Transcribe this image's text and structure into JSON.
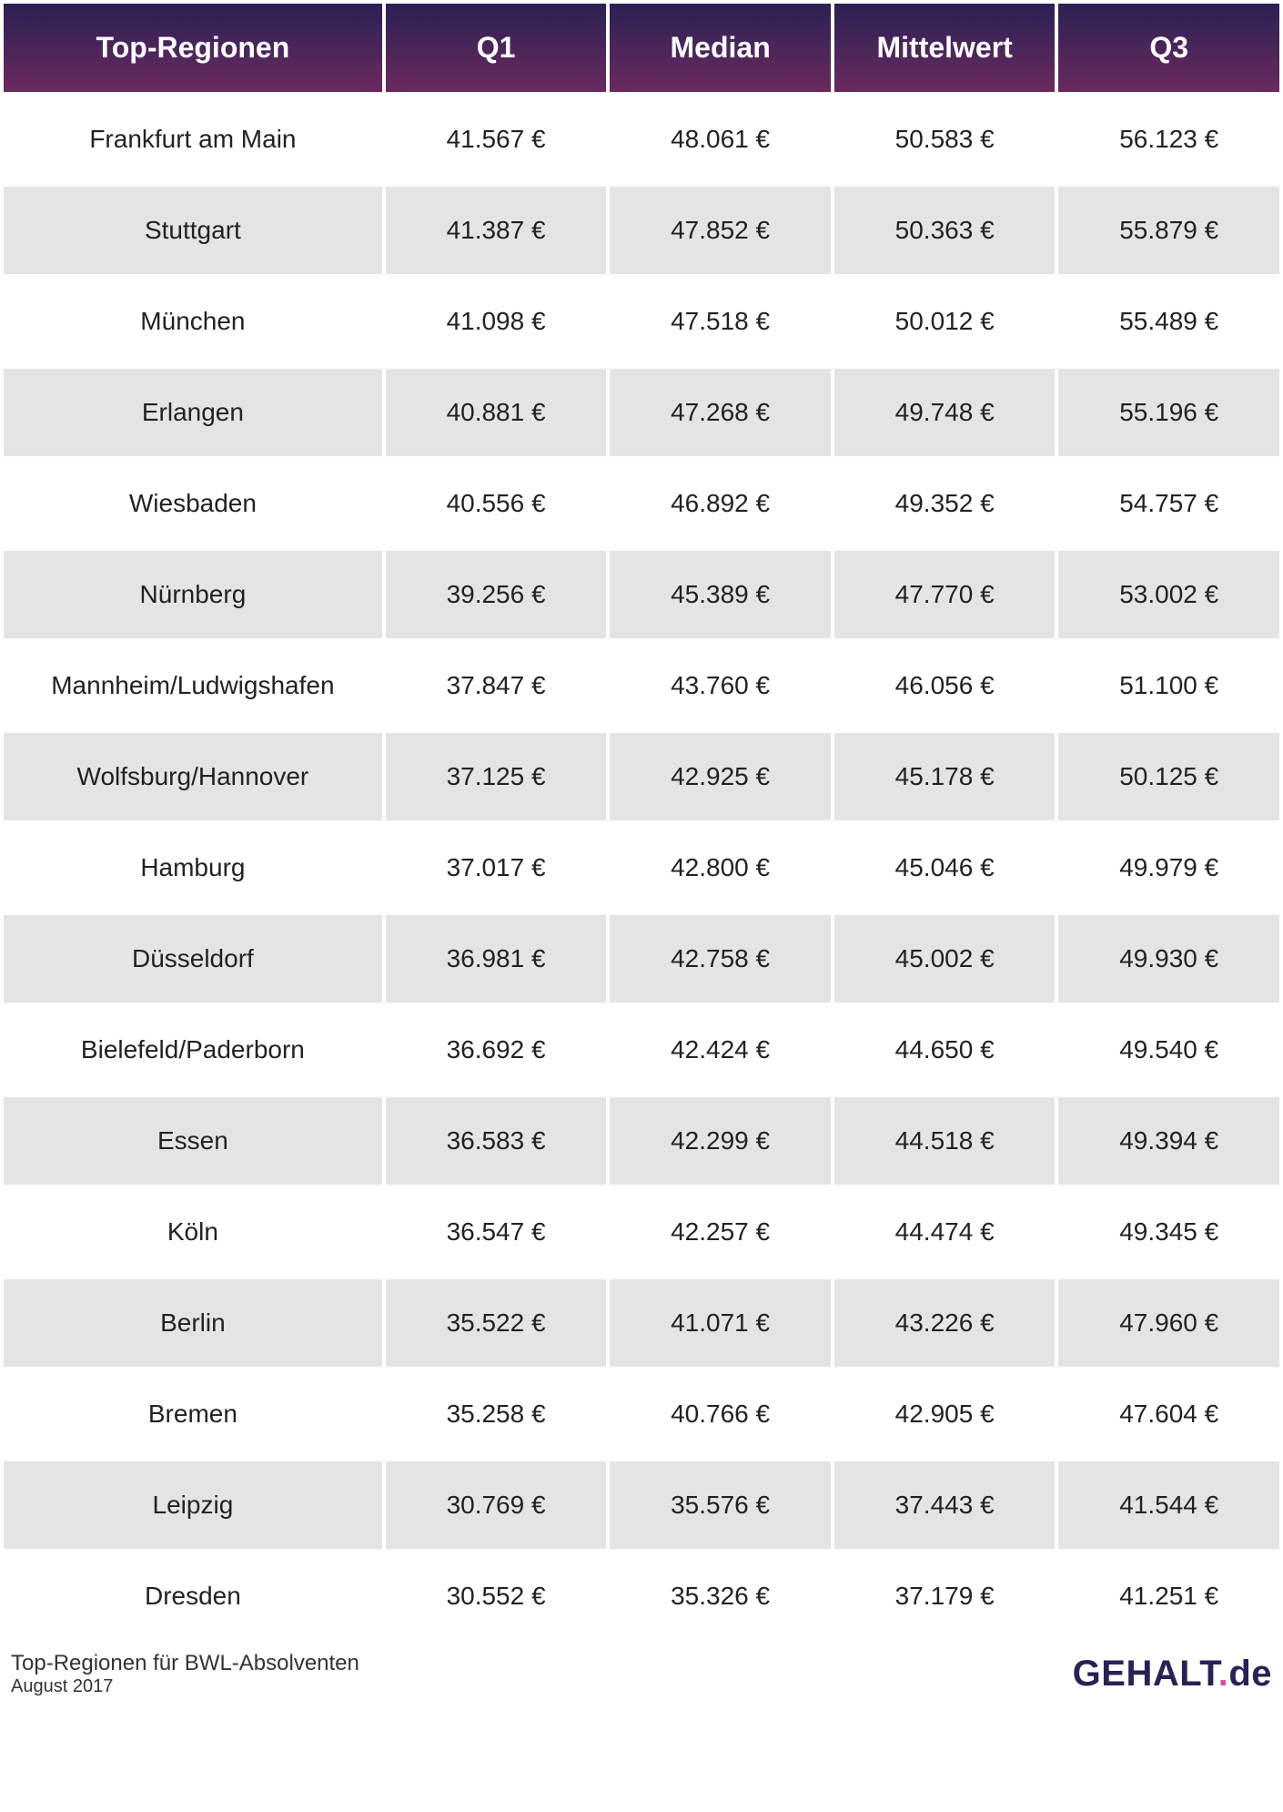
{
  "table": {
    "type": "table",
    "header_bg_gradient_start": "#2a2154",
    "header_bg_gradient_end": "#6b2a5f",
    "header_text_color": "#ffffff",
    "header_fontsize": 32,
    "header_fontweight": 600,
    "cell_fontsize": 28,
    "cell_text_color": "#222222",
    "row_odd_bg": "#ffffff",
    "row_even_bg": "#e4e4e4",
    "border_spacing": 4,
    "columns": [
      {
        "key": "region",
        "label": "Top-Regionen",
        "width": "30%"
      },
      {
        "key": "q1",
        "label": "Q1",
        "width": "17.5%"
      },
      {
        "key": "median",
        "label": "Median",
        "width": "17.5%"
      },
      {
        "key": "mittelwert",
        "label": "Mittelwert",
        "width": "17.5%"
      },
      {
        "key": "q3",
        "label": "Q3",
        "width": "17.5%"
      }
    ],
    "rows": [
      {
        "region": "Frankfurt am Main",
        "q1": "41.567 €",
        "median": "48.061 €",
        "mittelwert": "50.583 €",
        "q3": "56.123 €"
      },
      {
        "region": "Stuttgart",
        "q1": "41.387 €",
        "median": "47.852 €",
        "mittelwert": "50.363 €",
        "q3": "55.879 €"
      },
      {
        "region": "München",
        "q1": "41.098 €",
        "median": "47.518 €",
        "mittelwert": "50.012 €",
        "q3": "55.489 €"
      },
      {
        "region": "Erlangen",
        "q1": "40.881 €",
        "median": "47.268 €",
        "mittelwert": "49.748 €",
        "q3": "55.196 €"
      },
      {
        "region": "Wiesbaden",
        "q1": "40.556 €",
        "median": "46.892 €",
        "mittelwert": "49.352 €",
        "q3": "54.757 €"
      },
      {
        "region": "Nürnberg",
        "q1": "39.256 €",
        "median": "45.389 €",
        "mittelwert": "47.770 €",
        "q3": "53.002 €"
      },
      {
        "region": "Mannheim/Ludwigshafen",
        "q1": "37.847 €",
        "median": "43.760 €",
        "mittelwert": "46.056 €",
        "q3": "51.100 €"
      },
      {
        "region": "Wolfsburg/Hannover",
        "q1": "37.125 €",
        "median": "42.925 €",
        "mittelwert": "45.178 €",
        "q3": "50.125 €"
      },
      {
        "region": "Hamburg",
        "q1": "37.017 €",
        "median": "42.800 €",
        "mittelwert": "45.046 €",
        "q3": "49.979 €"
      },
      {
        "region": "Düsseldorf",
        "q1": "36.981 €",
        "median": "42.758 €",
        "mittelwert": "45.002 €",
        "q3": "49.930 €"
      },
      {
        "region": "Bielefeld/Paderborn",
        "q1": "36.692 €",
        "median": "42.424 €",
        "mittelwert": "44.650 €",
        "q3": "49.540 €"
      },
      {
        "region": "Essen",
        "q1": "36.583 €",
        "median": "42.299 €",
        "mittelwert": "44.518 €",
        "q3": "49.394 €"
      },
      {
        "region": "Köln",
        "q1": "36.547 €",
        "median": "42.257 €",
        "mittelwert": "44.474 €",
        "q3": "49.345 €"
      },
      {
        "region": "Berlin",
        "q1": "35.522 €",
        "median": "41.071 €",
        "mittelwert": "43.226 €",
        "q3": "47.960 €"
      },
      {
        "region": "Bremen",
        "q1": "35.258 €",
        "median": "40.766 €",
        "mittelwert": "42.905 €",
        "q3": "47.604 €"
      },
      {
        "region": "Leipzig",
        "q1": "30.769 €",
        "median": "35.576 €",
        "mittelwert": "37.443 €",
        "q3": "41.544 €"
      },
      {
        "region": "Dresden",
        "q1": "30.552 €",
        "median": "35.326 €",
        "mittelwert": "37.179 €",
        "q3": "41.251 €"
      }
    ]
  },
  "footer": {
    "title": "Top-Regionen für BWL-Absolventen",
    "date": "August 2017",
    "logo_gehalt": "GEHALT",
    "logo_dot": ".",
    "logo_de": "de",
    "title_fontsize": 24,
    "date_fontsize": 20,
    "logo_fontsize": 40,
    "logo_gehalt_color": "#2a2154",
    "logo_dot_color": "#d94f9e",
    "logo_de_color": "#2a2154"
  }
}
